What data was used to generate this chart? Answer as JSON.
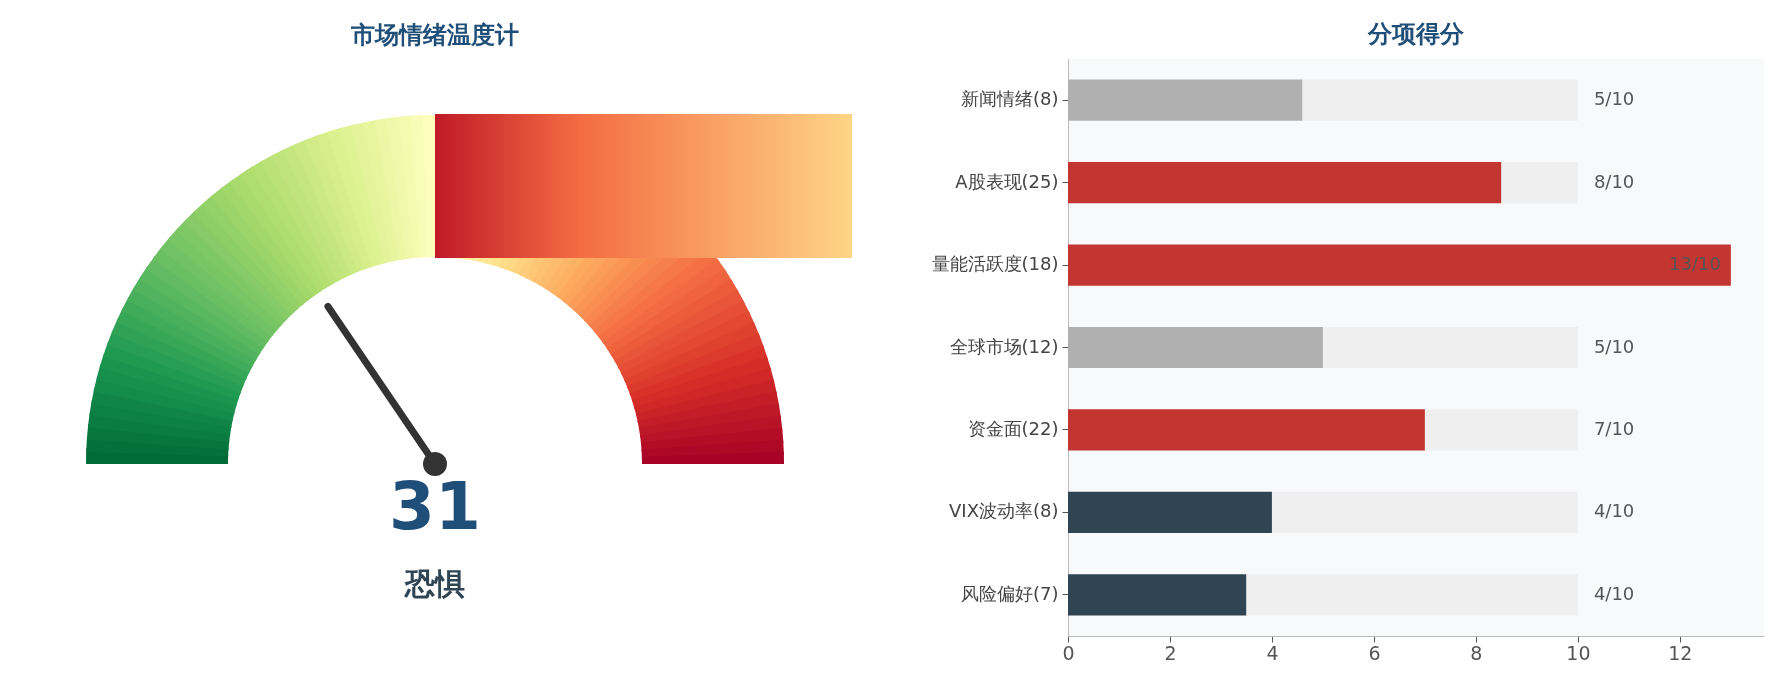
{
  "chart_data": [
    {
      "type": "other",
      "title": "市场情绪温度计",
      "annotations": [
        "31",
        "恐惧"
      ]
    },
    {
      "type": "bar",
      "orientation": "horizontal",
      "stacked": true,
      "title": "分项得分",
      "categories": [
        "新闻情绪(8)",
        "A股表现(25)",
        "量能活跃度(18)",
        "全球市场(12)",
        "资金面(22)",
        "VIX波动率(8)",
        "风险偏好(7)"
      ],
      "series": [
        {
          "colors": [
            "#b0b0b0",
            "#c23531",
            "#c23531",
            "#b0b0b0",
            "#c23531",
            "#2f4554",
            "#2f4554"
          ],
          "values": [
            4.6,
            8.5,
            13,
            5,
            7,
            4,
            3.5
          ]
        },
        {
          "color": "#efefef",
          "values": [
            5.4,
            1.5,
            null,
            5,
            3,
            6,
            6.5
          ]
        }
      ],
      "annotations": [
        "5/10",
        "8/10",
        "13/10",
        "5/10",
        "7/10",
        "4/10",
        "4/10"
      ],
      "xlim": [
        0,
        13.65
      ],
      "xticks": [
        0,
        2,
        4,
        6,
        8,
        10,
        12
      ],
      "grid": false
    }
  ]
}
